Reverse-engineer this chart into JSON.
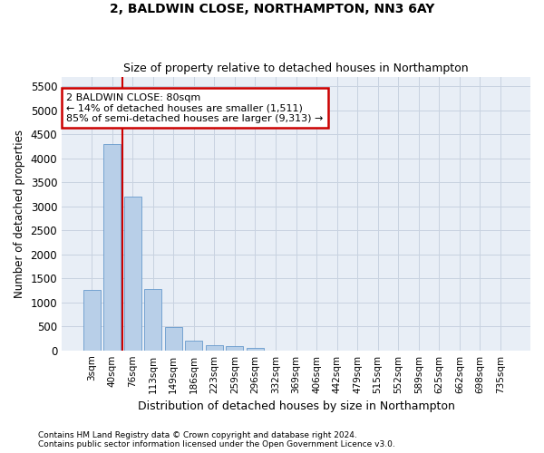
{
  "title": "2, BALDWIN CLOSE, NORTHAMPTON, NN3 6AY",
  "subtitle": "Size of property relative to detached houses in Northampton",
  "xlabel": "Distribution of detached houses by size in Northampton",
  "ylabel": "Number of detached properties",
  "footnote1": "Contains HM Land Registry data © Crown copyright and database right 2024.",
  "footnote2": "Contains public sector information licensed under the Open Government Licence v3.0.",
  "annotation_title": "2 BALDWIN CLOSE: 80sqm",
  "annotation_line1": "← 14% of detached houses are smaller (1,511)",
  "annotation_line2": "85% of semi-detached houses are larger (9,313) →",
  "bar_categories": [
    "3sqm",
    "40sqm",
    "76sqm",
    "113sqm",
    "149sqm",
    "186sqm",
    "223sqm",
    "259sqm",
    "296sqm",
    "332sqm",
    "369sqm",
    "406sqm",
    "442sqm",
    "479sqm",
    "515sqm",
    "552sqm",
    "589sqm",
    "625sqm",
    "662sqm",
    "698sqm",
    "735sqm"
  ],
  "bar_values": [
    1250,
    4300,
    3200,
    1280,
    480,
    200,
    100,
    80,
    60,
    0,
    0,
    0,
    0,
    0,
    0,
    0,
    0,
    0,
    0,
    0,
    0
  ],
  "bar_color": "#b8cfe8",
  "bar_edge_color": "#6699cc",
  "vline_x": 1.5,
  "vline_color": "#cc0000",
  "annotation_box_color": "#cc0000",
  "ylim": [
    0,
    5700
  ],
  "yticks": [
    0,
    500,
    1000,
    1500,
    2000,
    2500,
    3000,
    3500,
    4000,
    4500,
    5000,
    5500
  ],
  "grid_color": "#c8d2e0",
  "bg_color": "#e8eef6"
}
